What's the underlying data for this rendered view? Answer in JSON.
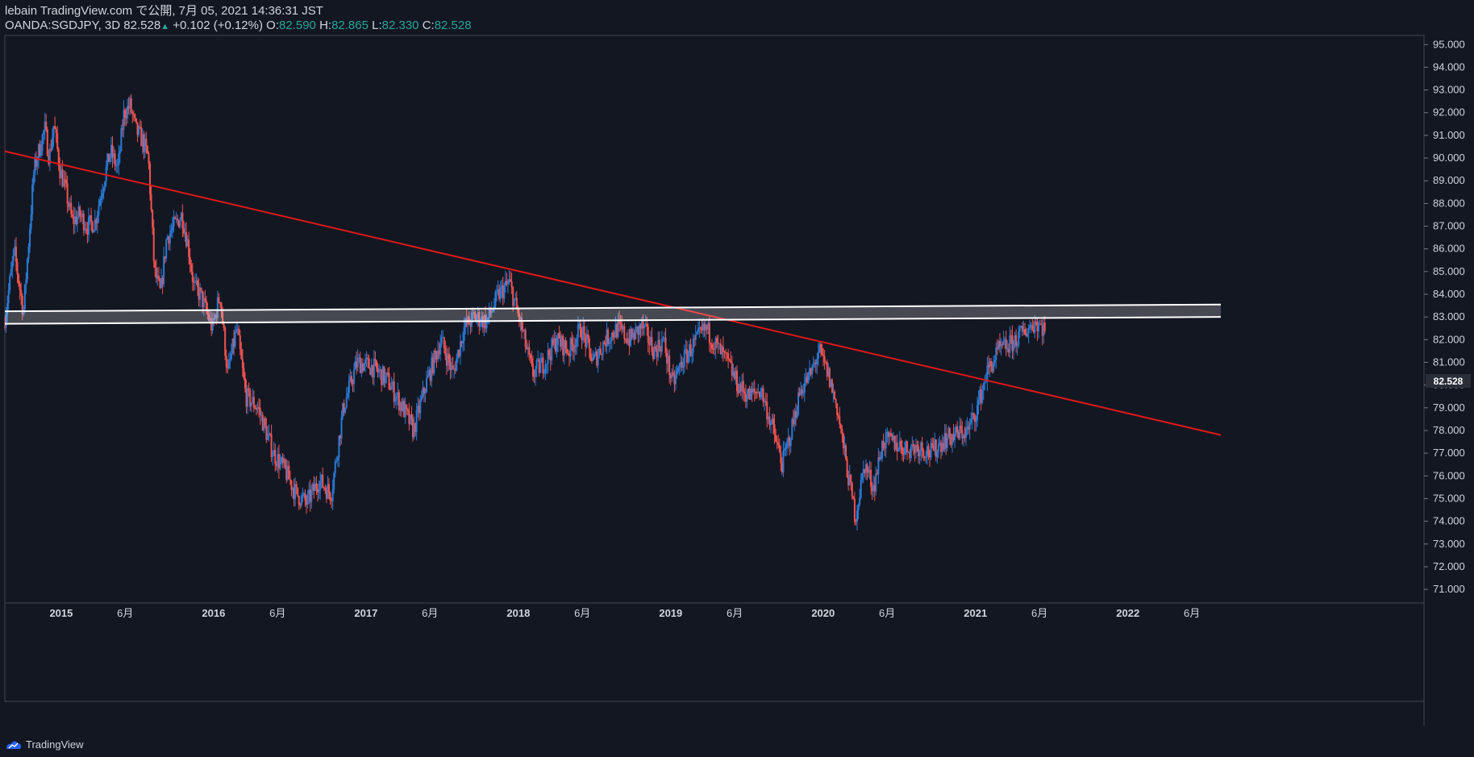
{
  "header": {
    "publisher": "lebain TradingView.com で公開, 7月 05, 2021 14:36:31 JST",
    "symbol": "OANDA:SGDJPY, 3D",
    "last": "82.528",
    "change": "+0.102 (+0.12%)",
    "open_label": "O:",
    "open": "82.590",
    "high_label": "H:",
    "high": "82.865",
    "low_label": "L:",
    "low": "82.330",
    "close_label": "C:",
    "close": "82.528"
  },
  "footer": {
    "brand": "TradingView"
  },
  "colors": {
    "background": "#131722",
    "up": "#2a7ad5",
    "down": "#ef5350",
    "trendline": "#e01818",
    "zone": "#ffffff"
  },
  "chart_data": {
    "type": "candlestick",
    "ylim": [
      70.4,
      95.4
    ],
    "y_ticks": [
      "71.000",
      "72.000",
      "73.000",
      "74.000",
      "75.000",
      "76.000",
      "77.000",
      "78.000",
      "79.000",
      "80.000",
      "81.000",
      "82.000",
      "83.000",
      "84.000",
      "85.000",
      "86.000",
      "87.000",
      "88.000",
      "89.000",
      "90.000",
      "91.000",
      "92.000",
      "93.000",
      "94.000",
      "95.000"
    ],
    "last_price": "82.528",
    "x_ticks": [
      {
        "label": "2015",
        "t": 2015.0,
        "bold": true
      },
      {
        "label": "6月",
        "t": 2015.42,
        "bold": false
      },
      {
        "label": "2016",
        "t": 2016.0,
        "bold": true
      },
      {
        "label": "6月",
        "t": 2016.42,
        "bold": false
      },
      {
        "label": "2017",
        "t": 2017.0,
        "bold": true
      },
      {
        "label": "6月",
        "t": 2017.42,
        "bold": false
      },
      {
        "label": "2018",
        "t": 2018.0,
        "bold": true
      },
      {
        "label": "6月",
        "t": 2018.42,
        "bold": false
      },
      {
        "label": "2019",
        "t": 2019.0,
        "bold": true
      },
      {
        "label": "6月",
        "t": 2019.42,
        "bold": false
      },
      {
        "label": "2020",
        "t": 2020.0,
        "bold": true
      },
      {
        "label": "6月",
        "t": 2020.42,
        "bold": false
      },
      {
        "label": "2021",
        "t": 2021.0,
        "bold": true
      },
      {
        "label": "6月",
        "t": 2021.42,
        "bold": false
      },
      {
        "label": "2022",
        "t": 2022.0,
        "bold": true
      },
      {
        "label": "6月",
        "t": 2022.42,
        "bold": false
      }
    ],
    "x_range": [
      2014.63,
      2022.61
    ],
    "series": [
      {
        "name": "SGDJPY",
        "points": [
          [
            2014.63,
            82.6
          ],
          [
            2014.7,
            85.9
          ],
          [
            2014.76,
            83.2
          ],
          [
            2014.83,
            89.5
          ],
          [
            2014.9,
            91.3
          ],
          [
            2014.93,
            90.0
          ],
          [
            2014.96,
            91.5
          ],
          [
            2015.0,
            89.5
          ],
          [
            2015.04,
            88.5
          ],
          [
            2015.08,
            87.2
          ],
          [
            2015.13,
            87.5
          ],
          [
            2015.18,
            87.0
          ],
          [
            2015.23,
            87.2
          ],
          [
            2015.28,
            88.8
          ],
          [
            2015.33,
            90.3
          ],
          [
            2015.38,
            89.5
          ],
          [
            2015.42,
            92.0
          ],
          [
            2015.46,
            92.3
          ],
          [
            2015.5,
            91.2
          ],
          [
            2015.54,
            90.8
          ],
          [
            2015.58,
            90.0
          ],
          [
            2015.62,
            85.0
          ],
          [
            2015.66,
            84.0
          ],
          [
            2015.7,
            86.5
          ],
          [
            2015.75,
            87.0
          ],
          [
            2015.8,
            87.5
          ],
          [
            2015.84,
            86.2
          ],
          [
            2015.88,
            84.3
          ],
          [
            2015.92,
            84.0
          ],
          [
            2016.0,
            82.5
          ],
          [
            2016.05,
            84.0
          ],
          [
            2016.1,
            80.5
          ],
          [
            2016.16,
            82.5
          ],
          [
            2016.22,
            79.5
          ],
          [
            2016.3,
            79.0
          ],
          [
            2016.4,
            77.0
          ],
          [
            2016.48,
            76.2
          ],
          [
            2016.55,
            75.2
          ],
          [
            2016.62,
            74.8
          ],
          [
            2016.7,
            75.8
          ],
          [
            2016.78,
            75.2
          ],
          [
            2016.86,
            79.0
          ],
          [
            2016.95,
            81.0
          ],
          [
            2017.05,
            80.8
          ],
          [
            2017.15,
            80.2
          ],
          [
            2017.25,
            79.0
          ],
          [
            2017.32,
            78.0
          ],
          [
            2017.4,
            80.0
          ],
          [
            2017.5,
            82.0
          ],
          [
            2017.58,
            80.5
          ],
          [
            2017.65,
            82.5
          ],
          [
            2017.72,
            83.0
          ],
          [
            2017.8,
            82.8
          ],
          [
            2017.88,
            84.0
          ],
          [
            2017.95,
            84.5
          ],
          [
            2018.03,
            82.5
          ],
          [
            2018.1,
            80.5
          ],
          [
            2018.18,
            81.0
          ],
          [
            2018.26,
            82.0
          ],
          [
            2018.34,
            81.5
          ],
          [
            2018.42,
            82.5
          ],
          [
            2018.5,
            81.0
          ],
          [
            2018.58,
            82.0
          ],
          [
            2018.66,
            82.5
          ],
          [
            2018.74,
            82.0
          ],
          [
            2018.82,
            82.6
          ],
          [
            2018.9,
            81.5
          ],
          [
            2018.96,
            82.0
          ],
          [
            2019.02,
            80.0
          ],
          [
            2019.08,
            81.0
          ],
          [
            2019.16,
            81.8
          ],
          [
            2019.24,
            82.5
          ],
          [
            2019.3,
            81.8
          ],
          [
            2019.38,
            81.0
          ],
          [
            2019.45,
            80.0
          ],
          [
            2019.52,
            79.5
          ],
          [
            2019.6,
            79.8
          ],
          [
            2019.68,
            78.0
          ],
          [
            2019.74,
            76.5
          ],
          [
            2019.8,
            78.0
          ],
          [
            2019.86,
            79.8
          ],
          [
            2019.93,
            80.5
          ],
          [
            2019.98,
            81.5
          ],
          [
            2020.04,
            80.5
          ],
          [
            2020.1,
            79.0
          ],
          [
            2020.16,
            76.5
          ],
          [
            2020.22,
            74.2
          ],
          [
            2020.28,
            76.5
          ],
          [
            2020.34,
            75.5
          ],
          [
            2020.4,
            77.5
          ],
          [
            2020.46,
            77.5
          ],
          [
            2020.55,
            77.2
          ],
          [
            2020.64,
            77.3
          ],
          [
            2020.72,
            77.0
          ],
          [
            2020.8,
            77.6
          ],
          [
            2020.88,
            77.8
          ],
          [
            2020.96,
            78.0
          ],
          [
            2021.02,
            79.0
          ],
          [
            2021.08,
            80.5
          ],
          [
            2021.16,
            81.5
          ],
          [
            2021.24,
            81.8
          ],
          [
            2021.32,
            82.3
          ],
          [
            2021.4,
            82.8
          ],
          [
            2021.46,
            82.5
          ]
        ]
      }
    ],
    "annotations": [
      {
        "type": "trendline",
        "points": [
          [
            2014.63,
            90.3
          ],
          [
            2022.61,
            77.8
          ]
        ]
      },
      {
        "type": "zone",
        "points": [
          [
            2014.63,
            82.7
          ],
          [
            2022.61,
            83.0
          ]
        ],
        "height": 0.55
      }
    ]
  }
}
